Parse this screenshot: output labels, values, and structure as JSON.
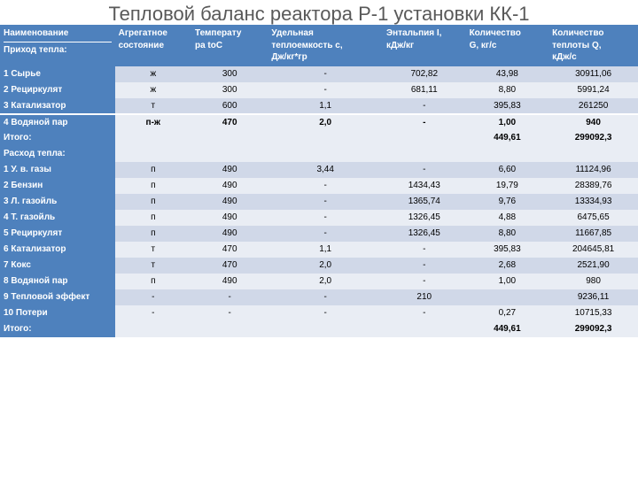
{
  "title": "Тепловой баланс реактора Р-1 установки КК-1",
  "table": {
    "columns": [
      {
        "head_line1": "Наименование",
        "head_line2": "Приход тепла:"
      },
      {
        "head_line1": "Агрегатное",
        "head_line2": "состояние"
      },
      {
        "head_line1": "Температу",
        "head_line2": "ра toC"
      },
      {
        "head_line1": "Удельная",
        "head_line2": "теплоемкость c,",
        "head_line3": "Дж/кг*гр"
      },
      {
        "head_line1": "Энтальпия I,",
        "head_line2": "кДж/кг"
      },
      {
        "head_line1": "Количество",
        "head_line2": "G, кг/с"
      },
      {
        "head_line1": "Количество",
        "head_line2": "теплоты      Q,",
        "head_line3": "кДж/с"
      }
    ],
    "rows": [
      {
        "band": "dark",
        "label": "1 Сырье",
        "cells": [
          "ж",
          "300",
          "-",
          "702,82",
          "43,98",
          "30911,06"
        ]
      },
      {
        "band": "light",
        "label": "2 Рециркулят",
        "cells": [
          "ж",
          "300",
          "-",
          "681,11",
          "8,80",
          "5991,24"
        ]
      },
      {
        "band": "dark",
        "label": "3 Катализатор",
        "cells": [
          "т",
          "600",
          "1,1",
          "-",
          "395,83",
          "261250"
        ]
      },
      {
        "band": "light",
        "sep": true,
        "bold": true,
        "label": "4 Водяной пар",
        "cells": [
          "п-ж",
          "470",
          "2,0",
          "-",
          "1,00",
          "940"
        ]
      },
      {
        "band": "itogo",
        "label": "Итого:",
        "cells": [
          "",
          "",
          "",
          "",
          "449,61",
          "299092,3"
        ]
      },
      {
        "band": "light",
        "label": "Расход тепла:",
        "cells": [
          "",
          "",
          "",
          "",
          "",
          ""
        ]
      },
      {
        "band": "dark",
        "label": "1 У. в. газы",
        "cells": [
          "п",
          "490",
          "3,44",
          "-",
          "6,60",
          "11124,96"
        ]
      },
      {
        "band": "light",
        "label": "2 Бензин",
        "cells": [
          "п",
          "490",
          "-",
          "1434,43",
          "19,79",
          "28389,76"
        ]
      },
      {
        "band": "dark",
        "label": "3 Л. газойль",
        "cells": [
          "п",
          "490",
          "-",
          "1365,74",
          "9,76",
          "13334,93"
        ]
      },
      {
        "band": "light",
        "label": "4 Т. газойль",
        "cells": [
          "п",
          "490",
          "-",
          "1326,45",
          "4,88",
          "6475,65"
        ]
      },
      {
        "band": "dark",
        "label": "5 Рециркулят",
        "cells": [
          "п",
          "490",
          "-",
          "1326,45",
          "8,80",
          "11667,85"
        ]
      },
      {
        "band": "light",
        "label": "6 Катализатор",
        "cells": [
          "т",
          "470",
          "1,1",
          "-",
          "395,83",
          "204645,81"
        ]
      },
      {
        "band": "dark",
        "label": "7 Кокс",
        "cells": [
          "т",
          "470",
          "2,0",
          "-",
          "2,68",
          "2521,90"
        ]
      },
      {
        "band": "light",
        "label": "8 Водяной пар",
        "cells": [
          "п",
          "490",
          "2,0",
          "-",
          "1,00",
          "980"
        ]
      },
      {
        "band": "dark",
        "label": "9 Тепловой эффект",
        "cells": [
          "-",
          "-",
          "-",
          "210",
          "",
          "9236,11"
        ]
      },
      {
        "band": "light",
        "label": "10 Потери",
        "cells": [
          "-",
          "-",
          "-",
          "-",
          "0,27",
          "10715,33"
        ]
      },
      {
        "band": "itogo",
        "label": "Итого:",
        "cells": [
          "",
          "",
          "",
          "",
          "449,61",
          "299092,3"
        ]
      }
    ]
  },
  "colors": {
    "header_bg": "#4e81bd",
    "header_fg": "#ffffff",
    "band_dark": "#d0d8e8",
    "band_light": "#e9edf4"
  }
}
